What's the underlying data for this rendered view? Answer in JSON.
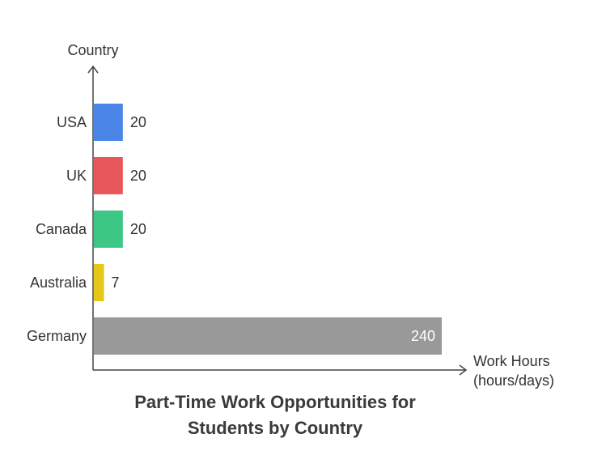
{
  "chart_data": {
    "type": "bar",
    "orientation": "horizontal",
    "title_lines": [
      "Part-Time Work Opportunities for",
      "Students by Country"
    ],
    "ylabel": "Country",
    "xlabel_lines": [
      "Work Hours",
      "(hours/days)"
    ],
    "categories": [
      "USA",
      "UK",
      "Canada",
      "Australia",
      "Germany"
    ],
    "values": [
      20,
      20,
      20,
      7,
      240
    ],
    "colors": [
      "#4a86e8",
      "#e8585a",
      "#3cc784",
      "#e6c619",
      "#999999"
    ],
    "xlim": [
      0,
      240
    ],
    "grid": false,
    "legend": "none"
  }
}
